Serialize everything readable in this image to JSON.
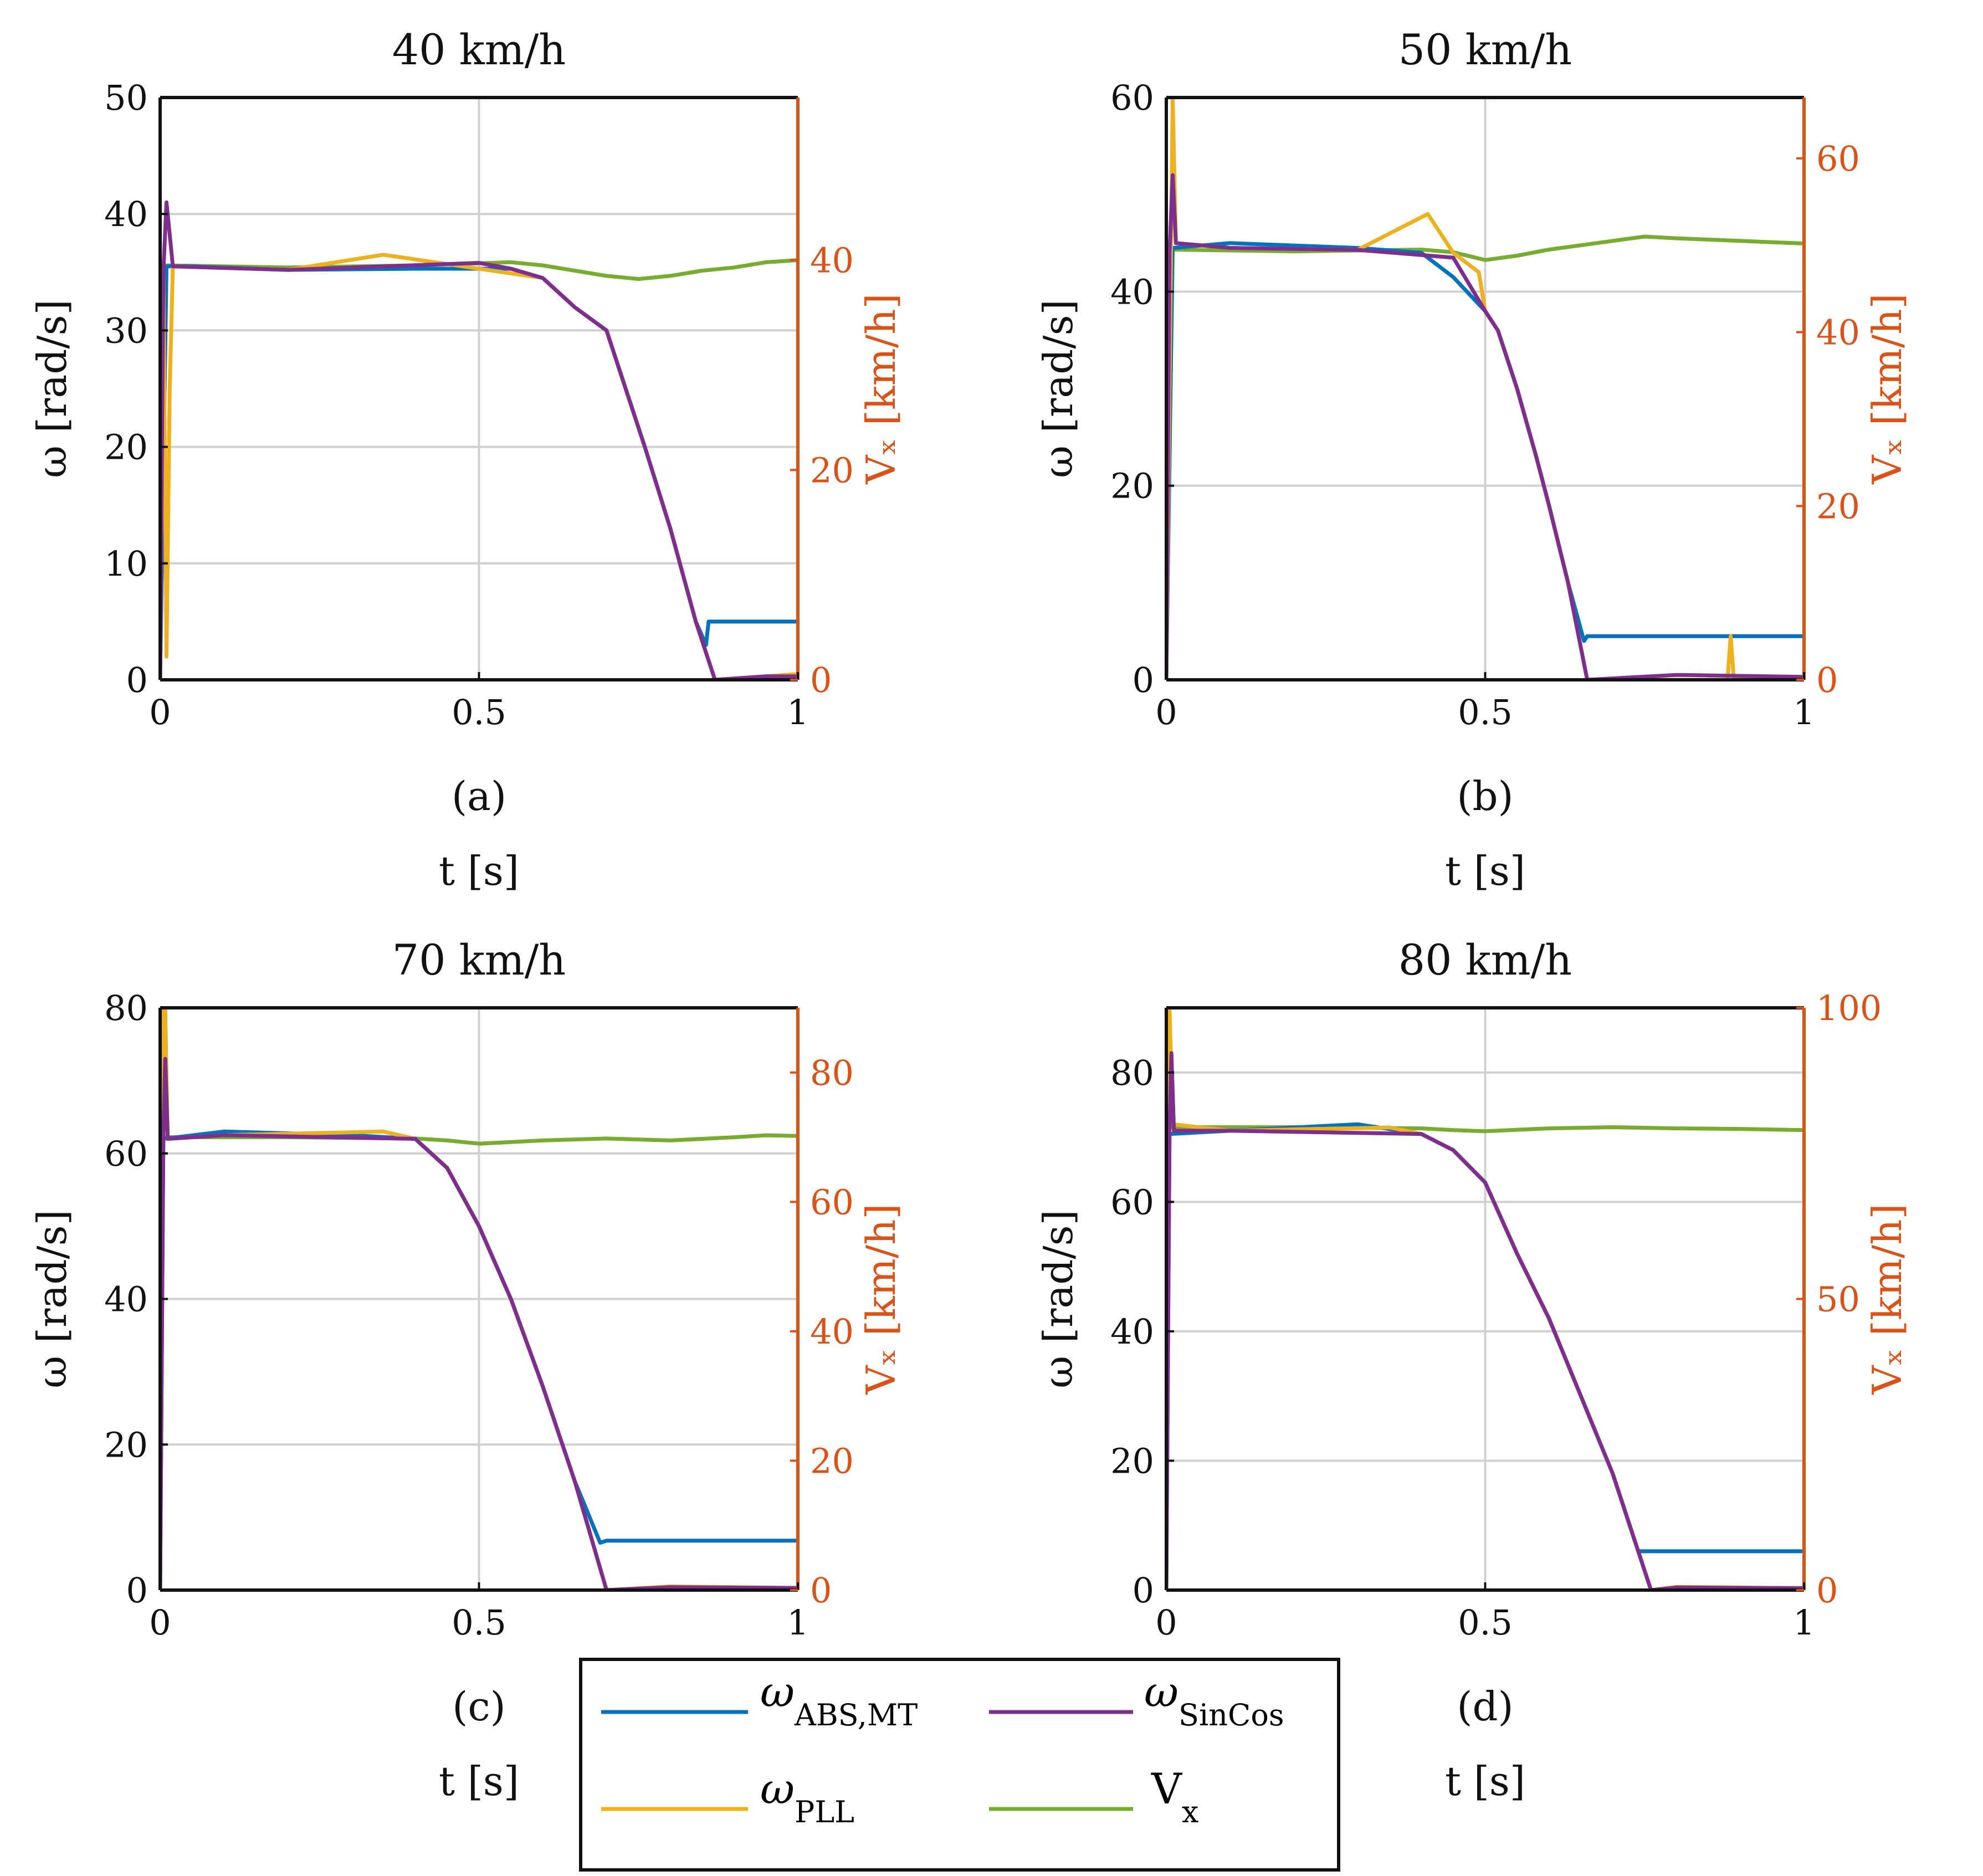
{
  "colors": {
    "abs_mt": "#0072BD",
    "pll": "#EDB120",
    "sincos": "#7E2F8E",
    "vx": "#77AC30",
    "right_axis": "#D95319",
    "grid": "#d0d0d0"
  },
  "legend": {
    "items": [
      {
        "key": "abs_mt",
        "symbol": "ω",
        "sub": "ABS,MT"
      },
      {
        "key": "sincos",
        "symbol": "ω",
        "sub": "SinCos"
      },
      {
        "key": "pll",
        "symbol": "ω",
        "sub": "PLL"
      },
      {
        "key": "vx",
        "symbol": "V",
        "sub": "x"
      }
    ]
  },
  "chart_data": [
    {
      "type": "line",
      "title": "40 km/h",
      "caption": "(a)",
      "xlabel": "t [s]",
      "ylabel": "ω [rad/s]",
      "ylabel_right": "Vₓ [km/h]",
      "xlim": [
        0,
        1
      ],
      "xticks": [
        0,
        0.5,
        1
      ],
      "xticklabels": [
        "0",
        "0.5",
        "1"
      ],
      "ylim": [
        0,
        50
      ],
      "yticks": [
        0,
        10,
        20,
        30,
        40,
        50
      ],
      "ylim_right": [
        0,
        55.5
      ],
      "yticks_right": [
        0,
        20,
        40
      ],
      "grid": true,
      "series": [
        {
          "name": "ω_ABS,MT",
          "key": "abs_mt",
          "t": [
            0,
            0.01,
            0.05,
            0.2,
            0.4,
            0.55,
            0.6,
            0.65,
            0.7,
            0.73,
            0.76,
            0.8,
            0.84,
            0.856,
            0.86,
            0.87,
            1.0
          ],
          "values": [
            0,
            35.5,
            35.5,
            35.2,
            35.3,
            35.3,
            34.5,
            32,
            30,
            25,
            20,
            13,
            5,
            3,
            5,
            5,
            5
          ]
        },
        {
          "name": "ω_PLL",
          "key": "pll",
          "t": [
            0,
            0.005,
            0.01,
            0.015,
            0.02,
            0.2,
            0.35,
            0.5,
            0.6,
            0.65,
            0.7,
            0.73,
            0.76,
            0.8,
            0.84,
            0.87,
            0.95,
            1.0
          ],
          "values": [
            0,
            35,
            2,
            25,
            35.5,
            35.2,
            36.5,
            35.3,
            34.5,
            32,
            30,
            25,
            20,
            13,
            5,
            0,
            0.3,
            0.5
          ]
        },
        {
          "name": "ω_SinCos",
          "key": "sincos",
          "t": [
            0,
            0.005,
            0.01,
            0.02,
            0.2,
            0.5,
            0.55,
            0.6,
            0.65,
            0.7,
            0.73,
            0.76,
            0.8,
            0.84,
            0.87,
            0.95,
            1.0
          ],
          "values": [
            0,
            35,
            41,
            35.5,
            35.2,
            35.8,
            35.3,
            34.5,
            32,
            30,
            25,
            20,
            13,
            5,
            0,
            0.3,
            0.3
          ]
        },
        {
          "name": "V_x",
          "key": "vx",
          "axis": "right",
          "t": [
            0,
            0.002,
            0.01,
            0.2,
            0.4,
            0.55,
            0.6,
            0.65,
            0.7,
            0.75,
            0.8,
            0.85,
            0.9,
            0.95,
            1.0
          ],
          "values": [
            20,
            39.5,
            39.5,
            39.3,
            39.5,
            39.8,
            39.5,
            39,
            38.5,
            38.2,
            38.5,
            39,
            39.3,
            39.8,
            40
          ]
        }
      ]
    },
    {
      "type": "line",
      "title": "50 km/h",
      "caption": "(b)",
      "xlabel": "t [s]",
      "ylabel": "ω [rad/s]",
      "ylabel_right": "Vₓ [km/h]",
      "xlim": [
        0,
        1
      ],
      "xticks": [
        0,
        0.5,
        1
      ],
      "xticklabels": [
        "0",
        "0.5",
        "1"
      ],
      "ylim": [
        0,
        60
      ],
      "yticks": [
        0,
        20,
        40,
        60
      ],
      "ylim_right": [
        0,
        67
      ],
      "yticks_right": [
        0,
        20,
        40,
        60
      ],
      "grid": true,
      "series": [
        {
          "name": "ω_ABS,MT",
          "key": "abs_mt",
          "t": [
            0,
            0.01,
            0.1,
            0.3,
            0.4,
            0.45,
            0.5,
            0.52,
            0.55,
            0.58,
            0.6,
            0.63,
            0.655,
            0.66,
            1.0
          ],
          "values": [
            0,
            44.5,
            45,
            44.5,
            44,
            41.5,
            38,
            36,
            30,
            23,
            18,
            10,
            4,
            4.5,
            4.5
          ]
        },
        {
          "name": "ω_PLL",
          "key": "pll",
          "t": [
            0,
            0.005,
            0.01,
            0.015,
            0.1,
            0.3,
            0.41,
            0.45,
            0.49,
            0.5,
            0.52,
            0.55,
            0.58,
            0.6,
            0.63,
            0.66,
            0.88,
            0.885,
            0.89,
            1.0
          ],
          "values": [
            0,
            30,
            60,
            45,
            44.5,
            44.3,
            48,
            44,
            42,
            38,
            36,
            30,
            23,
            18,
            10,
            0,
            0,
            4.5,
            0,
            0.3
          ]
        },
        {
          "name": "ω_SinCos",
          "key": "sincos",
          "t": [
            0,
            0.005,
            0.01,
            0.015,
            0.1,
            0.3,
            0.45,
            0.5,
            0.52,
            0.55,
            0.58,
            0.6,
            0.63,
            0.66,
            0.8,
            1.0
          ],
          "values": [
            0,
            44,
            52,
            45,
            44.5,
            44.3,
            43.5,
            38,
            36,
            30,
            23,
            18,
            10,
            0,
            0.5,
            0.3
          ]
        },
        {
          "name": "V_x",
          "key": "vx",
          "axis": "right",
          "t": [
            0,
            0.002,
            0.01,
            0.2,
            0.4,
            0.45,
            0.5,
            0.55,
            0.6,
            0.65,
            0.7,
            0.75,
            0.8,
            0.9,
            1.0
          ],
          "values": [
            30,
            49.5,
            49.5,
            49.3,
            49.5,
            49.2,
            48.3,
            48.8,
            49.5,
            50,
            50.5,
            51,
            50.8,
            50.5,
            50.2
          ]
        }
      ]
    },
    {
      "type": "line",
      "title": "70 km/h",
      "caption": "(c)",
      "xlabel": "t [s]",
      "ylabel": "ω [rad/s]",
      "ylabel_right": "Vₓ [km/h]",
      "xlim": [
        0,
        1
      ],
      "xticks": [
        0,
        0.5,
        1
      ],
      "xticklabels": [
        "0",
        "0.5",
        "1"
      ],
      "ylim": [
        0,
        80
      ],
      "yticks": [
        0,
        20,
        40,
        60,
        80
      ],
      "ylim_right": [
        0,
        90
      ],
      "yticks_right": [
        0,
        20,
        40,
        60,
        80
      ],
      "grid": true,
      "series": [
        {
          "name": "ω_ABS,MT",
          "key": "abs_mt",
          "t": [
            0,
            0.005,
            0.1,
            0.3,
            0.4,
            0.45,
            0.5,
            0.55,
            0.6,
            0.65,
            0.69,
            0.7,
            1.0
          ],
          "values": [
            0,
            62,
            63,
            62.5,
            62,
            58,
            50,
            40,
            28,
            15,
            6.5,
            6.8,
            6.8
          ]
        },
        {
          "name": "ω_PLL",
          "key": "pll",
          "t": [
            0,
            0.003,
            0.005,
            0.008,
            0.012,
            0.1,
            0.35,
            0.4,
            0.45,
            0.5,
            0.55,
            0.6,
            0.65,
            0.7,
            0.8,
            1.0
          ],
          "values": [
            0,
            40,
            80,
            80,
            62,
            62.5,
            63,
            62,
            58,
            50,
            40,
            28,
            15,
            0,
            0.5,
            0.3
          ]
        },
        {
          "name": "ω_SinCos",
          "key": "sincos",
          "t": [
            0,
            0.005,
            0.008,
            0.012,
            0.1,
            0.4,
            0.45,
            0.5,
            0.55,
            0.6,
            0.65,
            0.7,
            0.8,
            1.0
          ],
          "values": [
            0,
            62,
            73,
            62,
            62.5,
            62,
            58,
            50,
            40,
            28,
            15,
            0,
            0.4,
            0.3
          ]
        },
        {
          "name": "V_x",
          "key": "vx",
          "axis": "right",
          "t": [
            0,
            0.002,
            0.01,
            0.2,
            0.4,
            0.45,
            0.5,
            0.6,
            0.7,
            0.8,
            0.9,
            0.95,
            1.0
          ],
          "values": [
            35,
            70,
            70,
            70,
            69.8,
            69.5,
            69,
            69.5,
            69.8,
            69.5,
            70,
            70.3,
            70.2
          ]
        }
      ]
    },
    {
      "type": "line",
      "title": "80 km/h",
      "caption": "(d)",
      "xlabel": "t [s]",
      "ylabel": "ω [rad/s]",
      "ylabel_right": "Vₓ [km/h]",
      "xlim": [
        0,
        1
      ],
      "xticks": [
        0,
        0.5,
        1
      ],
      "xticklabels": [
        "0",
        "0.5",
        "1"
      ],
      "ylim": [
        0,
        90
      ],
      "yticks": [
        0,
        20,
        40,
        60,
        80
      ],
      "ylim_right": [
        0,
        100
      ],
      "yticks_right": [
        0,
        50,
        100
      ],
      "grid": true,
      "series": [
        {
          "name": "ω_ABS,MT",
          "key": "abs_mt",
          "t": [
            0,
            0.005,
            0.1,
            0.3,
            0.4,
            0.45,
            0.5,
            0.55,
            0.6,
            0.65,
            0.7,
            0.74,
            0.75,
            1.0
          ],
          "values": [
            0,
            70.5,
            71,
            72,
            70.5,
            68,
            63,
            52,
            42,
            30,
            18,
            6,
            6,
            6
          ]
        },
        {
          "name": "ω_PLL",
          "key": "pll",
          "t": [
            0,
            0.002,
            0.005,
            0.01,
            0.1,
            0.35,
            0.4,
            0.45,
            0.5,
            0.55,
            0.6,
            0.65,
            0.7,
            0.76,
            0.8,
            1.0
          ],
          "values": [
            0,
            40,
            90,
            72,
            71,
            71.5,
            70.5,
            68,
            63,
            52,
            42,
            30,
            18,
            0,
            0.5,
            0.3
          ]
        },
        {
          "name": "ω_SinCos",
          "key": "sincos",
          "t": [
            0,
            0.005,
            0.008,
            0.012,
            0.1,
            0.4,
            0.45,
            0.5,
            0.55,
            0.6,
            0.65,
            0.7,
            0.76,
            0.8,
            1.0
          ],
          "values": [
            0,
            71,
            83,
            71,
            71,
            70.5,
            68,
            63,
            52,
            42,
            30,
            18,
            0,
            0.4,
            0.3
          ]
        },
        {
          "name": "V_x",
          "key": "vx",
          "axis": "right",
          "t": [
            0,
            0.002,
            0.01,
            0.2,
            0.4,
            0.45,
            0.5,
            0.6,
            0.7,
            0.8,
            0.9,
            1.0
          ],
          "values": [
            40,
            79.5,
            79.5,
            79.5,
            79.3,
            79,
            78.8,
            79.3,
            79.5,
            79.3,
            79.2,
            79
          ]
        }
      ]
    }
  ]
}
